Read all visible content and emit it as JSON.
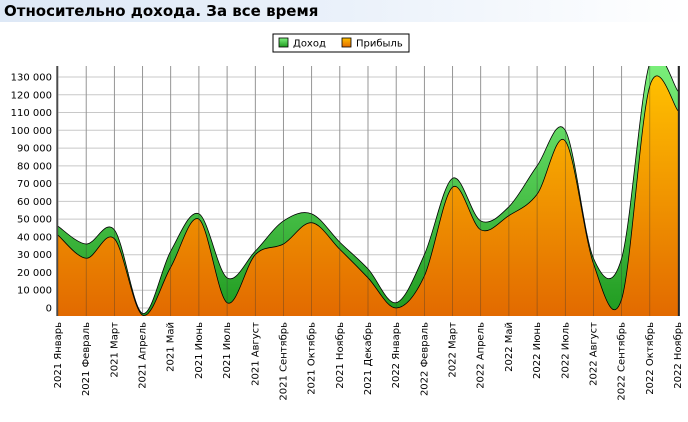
{
  "page": {
    "title": "Относительно дохода. За все время"
  },
  "colors": {
    "income_light": "#7ef27e",
    "income_dark": "#1f9a1f",
    "profit_light": "#ffc000",
    "profit_dark": "#e26a00",
    "grid": "#c8c8c8"
  },
  "chart_data": {
    "type": "area",
    "title": "Относительно дохода. За все время",
    "legend": {
      "position": "top-center",
      "items": [
        "Доход",
        "Прибыль"
      ]
    },
    "ylim": [
      0,
      135000
    ],
    "yticks": [
      0,
      10000,
      20000,
      30000,
      40000,
      50000,
      60000,
      70000,
      80000,
      90000,
      100000,
      110000,
      120000,
      130000
    ],
    "ytick_labels": [
      "0",
      "10 000",
      "20 000",
      "30 000",
      "40 000",
      "50 000",
      "60 000",
      "70 000",
      "80 000",
      "90 000",
      "100 000",
      "110 000",
      "120 000",
      "130 000"
    ],
    "grid": true,
    "categories": [
      "2021 Январь",
      "2021 Февраль",
      "2021 Март",
      "2021 Апрель",
      "2021 Май",
      "2021 Июнь",
      "2021 Июль",
      "2021 Август",
      "2021 Сентябрь",
      "2021 Октябрь",
      "2021 Ноябрь",
      "2021 Декабрь",
      "2022 Январь",
      "2022 Февраль",
      "2022 Март",
      "2022 Апрель",
      "2022 Май",
      "2022 Июнь",
      "2022 Июль",
      "2022 Август",
      "2022 Сентябрь",
      "2022 Октябрь",
      "2022 Ноябрь"
    ],
    "series": [
      {
        "name": "Доход",
        "values": [
          46000,
          36000,
          44000,
          -3000,
          32000,
          53000,
          17000,
          32000,
          49000,
          53000,
          37000,
          22000,
          3000,
          30000,
          73000,
          49000,
          57000,
          80000,
          100000,
          28000,
          28000,
          138000,
          122000
        ]
      },
      {
        "name": "Прибыль",
        "values": [
          41000,
          28000,
          39000,
          -4000,
          23000,
          50000,
          3000,
          30000,
          36000,
          48000,
          33000,
          17000,
          0,
          18000,
          68000,
          44000,
          52000,
          64000,
          94000,
          25000,
          5000,
          125000,
          111000
        ]
      }
    ]
  }
}
